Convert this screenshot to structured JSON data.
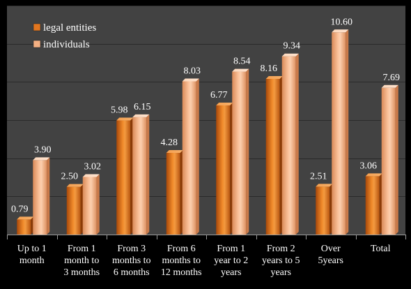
{
  "chart_data": {
    "type": "bar",
    "title": "",
    "xlabel": "",
    "ylabel": "",
    "ylim": [
      0,
      12
    ],
    "grid": true,
    "legend_position": "top-left",
    "categories": [
      [
        "Up to 1",
        "month"
      ],
      [
        "From 1",
        "month to",
        "3 months"
      ],
      [
        "From 3",
        "months to",
        "6 months"
      ],
      [
        "From 6",
        "months to",
        "12 months"
      ],
      [
        "From 1",
        "year to 2",
        "years"
      ],
      [
        "From 2",
        "years to 5",
        "years"
      ],
      [
        "Over",
        "5years"
      ],
      [
        "Total"
      ]
    ],
    "series": [
      {
        "name": "legal entities",
        "color": "#e2761f",
        "values": [
          0.79,
          2.5,
          5.98,
          4.28,
          6.77,
          8.16,
          2.51,
          3.06
        ],
        "labels": [
          "0.79",
          "2.50",
          "5.98",
          "4.28",
          "6.77",
          "8.16",
          "2.51",
          "3.06"
        ]
      },
      {
        "name": "individuals",
        "color": "#f4b083",
        "values": [
          3.9,
          3.02,
          6.15,
          8.03,
          8.54,
          9.34,
          10.6,
          7.69
        ],
        "labels": [
          "3.90",
          "3.02",
          "6.15",
          "8.03",
          "8.54",
          "9.34",
          "10.60",
          "7.69"
        ]
      }
    ]
  }
}
